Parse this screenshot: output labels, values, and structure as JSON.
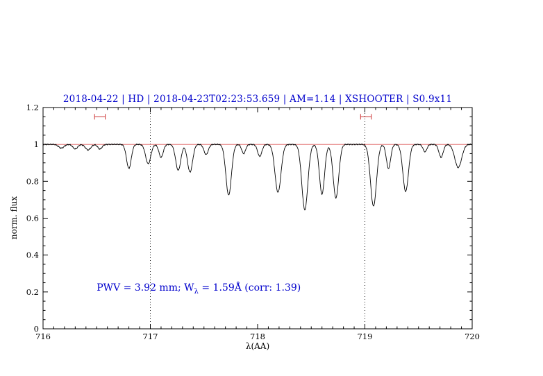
{
  "chart_data": {
    "type": "line",
    "title": "2018-04-22 | HD | 2018-04-23T02:23:53.659 | AM=1.14 | XSHOOTER | S0.9x11",
    "title_color": "#0000cc",
    "xlabel": "λ(AA)",
    "ylabel": "norm. flux",
    "xlim": [
      716,
      720
    ],
    "ylim": [
      0,
      1.2
    ],
    "x_ticks": [
      716,
      717,
      718,
      719,
      720
    ],
    "x_tick_labels": [
      "716",
      "717",
      "718",
      "719",
      "720"
    ],
    "x_minor_step": 0.1,
    "y_ticks": [
      0,
      0.2,
      0.4,
      0.6,
      0.8,
      1,
      1.2
    ],
    "y_tick_labels": [
      "0",
      "0.2",
      "0.4",
      "0.6",
      "0.8",
      "1",
      "1.2"
    ],
    "y_minor_step": 0.05,
    "grid": false,
    "legend": null,
    "dotted_vlines": [
      717,
      719
    ],
    "continuum_line_y": 1.0,
    "continuum_color": "#dd5555",
    "marker_color": "#cc3333",
    "spectrum_color": "#000000",
    "noise_amplitude": 0.003,
    "annotation": {
      "prefix": "PWV = 3.92 mm; W",
      "sub": "λ",
      "suffix": " = 1.59Å (corr: 1.39)",
      "color": "#0000cc",
      "x": 716.5,
      "y": 0.2
    },
    "range_markers": [
      {
        "center": 716.53,
        "half_width": 0.05,
        "y": 1.15
      },
      {
        "center": 719.01,
        "half_width": 0.05,
        "y": 1.15
      }
    ],
    "absorption_lines": [
      {
        "center": 716.17,
        "depth": 0.02,
        "sigma": 0.025
      },
      {
        "center": 716.3,
        "depth": 0.025,
        "sigma": 0.022
      },
      {
        "center": 716.42,
        "depth": 0.03,
        "sigma": 0.025
      },
      {
        "center": 716.53,
        "depth": 0.025,
        "sigma": 0.02
      },
      {
        "center": 716.8,
        "depth": 0.13,
        "sigma": 0.022
      },
      {
        "center": 716.98,
        "depth": 0.105,
        "sigma": 0.024
      },
      {
        "center": 717.1,
        "depth": 0.07,
        "sigma": 0.02
      },
      {
        "center": 717.26,
        "depth": 0.14,
        "sigma": 0.024
      },
      {
        "center": 717.37,
        "depth": 0.15,
        "sigma": 0.024
      },
      {
        "center": 717.52,
        "depth": 0.055,
        "sigma": 0.02
      },
      {
        "center": 717.73,
        "depth": 0.275,
        "sigma": 0.026
      },
      {
        "center": 717.87,
        "depth": 0.05,
        "sigma": 0.018
      },
      {
        "center": 718.02,
        "depth": 0.065,
        "sigma": 0.02
      },
      {
        "center": 718.19,
        "depth": 0.26,
        "sigma": 0.028
      },
      {
        "center": 718.44,
        "depth": 0.355,
        "sigma": 0.028
      },
      {
        "center": 718.6,
        "depth": 0.27,
        "sigma": 0.024
      },
      {
        "center": 718.73,
        "depth": 0.29,
        "sigma": 0.026
      },
      {
        "center": 719.08,
        "depth": 0.335,
        "sigma": 0.028
      },
      {
        "center": 719.22,
        "depth": 0.13,
        "sigma": 0.02
      },
      {
        "center": 719.38,
        "depth": 0.255,
        "sigma": 0.026
      },
      {
        "center": 719.56,
        "depth": 0.04,
        "sigma": 0.018
      },
      {
        "center": 719.71,
        "depth": 0.07,
        "sigma": 0.02
      },
      {
        "center": 719.87,
        "depth": 0.125,
        "sigma": 0.032
      }
    ]
  }
}
